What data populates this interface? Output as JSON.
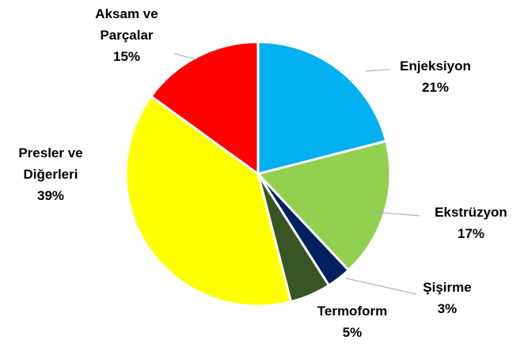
{
  "chart_data": {
    "type": "pie",
    "categories": [
      "Enjeksiyon",
      "Ekstrüzyon",
      "Şişirme",
      "Termoform",
      "Presler ve Diğerleri",
      "Aksam ve Parçalar"
    ],
    "values": [
      21,
      17,
      3,
      5,
      39,
      15
    ],
    "value_labels": [
      "21%",
      "17%",
      "3%",
      "5%",
      "39%",
      "15%"
    ],
    "colors": [
      "#00b0f0",
      "#92d050",
      "#002060",
      "#375623",
      "#ffff00",
      "#ff0000"
    ]
  }
}
